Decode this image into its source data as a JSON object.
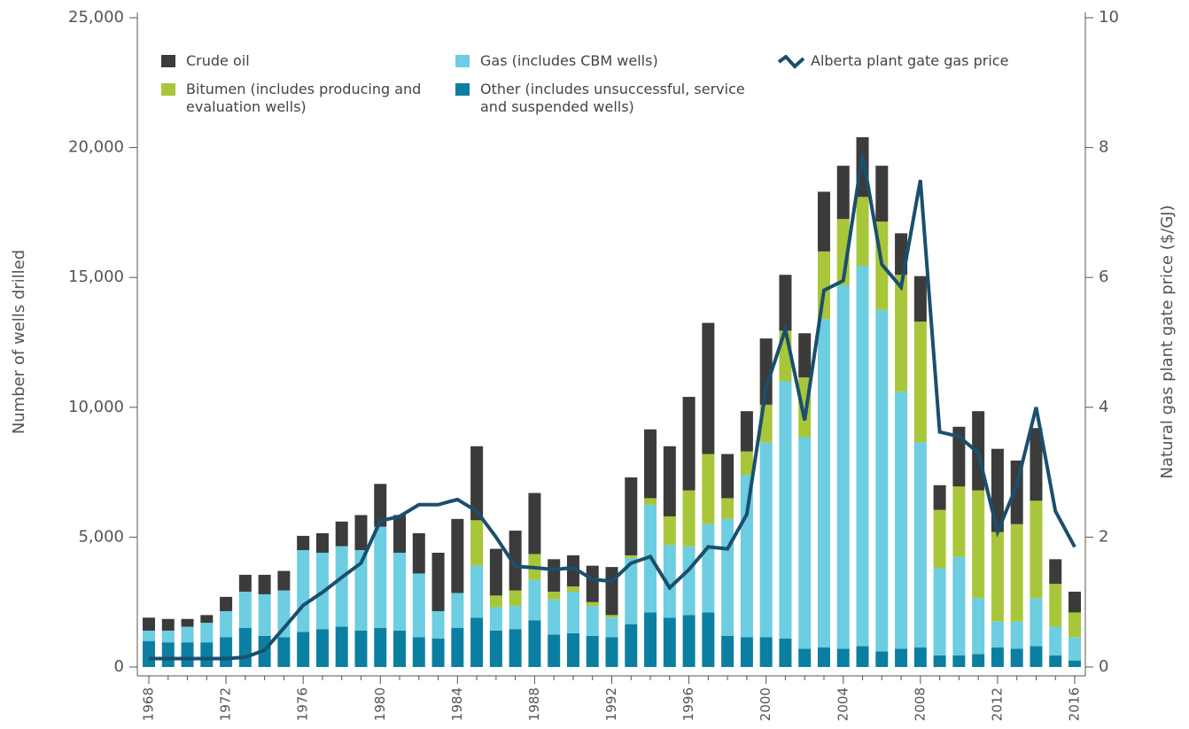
{
  "chart_data": {
    "type": "bar",
    "y_label": "Number of wells drilled",
    "y2_label": "Natural gas plant gate price ($/GJ)",
    "categories": [
      "1968",
      null,
      null,
      null,
      "1972",
      null,
      null,
      null,
      "1976",
      null,
      null,
      null,
      "1980",
      null,
      null,
      null,
      "1984",
      null,
      null,
      null,
      "1988",
      null,
      null,
      null,
      "1992",
      null,
      null,
      null,
      "1996",
      null,
      null,
      null,
      "2000",
      null,
      null,
      null,
      "2004",
      null,
      null,
      null,
      "2008",
      null,
      null,
      null,
      "2012",
      null,
      null,
      null,
      "2016"
    ],
    "stacked": true,
    "series": [
      {
        "name": "Crude oil",
        "color": "#3b3b3b",
        "values": [
          500,
          450,
          300,
          300,
          550,
          650,
          750,
          750,
          550,
          750,
          950,
          1350,
          1650,
          1450,
          1550,
          2250,
          2850,
          2850,
          1800,
          2300,
          2350,
          1250,
          1200,
          1400,
          1850,
          3000,
          2650,
          2700,
          3600,
          5050,
          1700,
          1550,
          2550,
          2150,
          1700,
          2300,
          2050,
          2300,
          2150,
          1600,
          1750,
          950,
          2300,
          3050,
          3200,
          2450,
          2800,
          950,
          800
        ]
      },
      {
        "name": "Bitumen (includes producing and evaluation wells)",
        "color": "#a8c63a",
        "values": [
          0,
          0,
          0,
          0,
          0,
          0,
          0,
          0,
          0,
          0,
          0,
          0,
          0,
          0,
          0,
          0,
          0,
          1750,
          450,
          600,
          1000,
          300,
          200,
          150,
          100,
          100,
          250,
          1100,
          2150,
          2700,
          800,
          900,
          1450,
          1950,
          2300,
          2600,
          2550,
          2650,
          3400,
          4500,
          4650,
          2250,
          2700,
          4150,
          3450,
          3750,
          3750,
          1650,
          950
        ]
      },
      {
        "name": "Gas (includes CBM wells)",
        "color": "#6dcde1",
        "values": [
          400,
          450,
          600,
          750,
          1000,
          1400,
          1600,
          1800,
          3150,
          2950,
          3100,
          3100,
          3900,
          3000,
          2450,
          1050,
          1350,
          2000,
          900,
          900,
          1550,
          1350,
          1600,
          1150,
          750,
          2550,
          4150,
          2800,
          2650,
          3400,
          4500,
          6250,
          7500,
          9900,
          8150,
          12650,
          14000,
          14650,
          13150,
          9900,
          7900,
          3350,
          3800,
          2150,
          1000,
          1050,
          1850,
          1100,
          900
        ]
      },
      {
        "name": "Other (includes unsuccessful, service and suspended wells)",
        "color": "#0b7fa1",
        "values": [
          1000,
          950,
          950,
          950,
          1150,
          1500,
          1200,
          1150,
          1350,
          1450,
          1550,
          1400,
          1500,
          1400,
          1150,
          1100,
          1500,
          1900,
          1400,
          1450,
          1800,
          1250,
          1300,
          1200,
          1150,
          1650,
          2100,
          1900,
          2000,
          2100,
          1200,
          1150,
          1150,
          1100,
          700,
          750,
          700,
          800,
          600,
          700,
          750,
          450,
          450,
          500,
          750,
          700,
          800,
          450,
          250
        ]
      },
      {
        "name": "Alberta plant gate gas price",
        "color": "#1a4f6e",
        "type": "line",
        "axis": "y2",
        "values": [
          0.13,
          0.13,
          0.13,
          0.13,
          0.13,
          0.15,
          0.26,
          0.6,
          0.95,
          1.15,
          1.38,
          1.6,
          2.25,
          2.32,
          2.5,
          2.5,
          2.58,
          2.4,
          2.0,
          1.55,
          1.53,
          1.5,
          1.53,
          1.35,
          1.32,
          1.6,
          1.7,
          1.22,
          1.5,
          1.85,
          1.82,
          2.35,
          4.3,
          5.2,
          3.8,
          5.8,
          5.95,
          7.9,
          6.2,
          5.85,
          7.5,
          3.62,
          3.55,
          3.3,
          2.08,
          2.8,
          4.0,
          2.4,
          1.85
        ]
      }
    ],
    "ylim": [
      0,
      25000
    ],
    "yticks": [
      0,
      {
        "value": 5000,
        "label": "5,000"
      },
      {
        "value": 10000,
        "label": "10,000"
      },
      {
        "value": 15000,
        "label": "15,000"
      },
      {
        "value": 20000,
        "label": "20,000"
      },
      {
        "value": 25000,
        "label": "25,000"
      }
    ],
    "y2lim": [
      0,
      10
    ],
    "y2ticks": [
      0,
      2,
      4,
      6,
      8,
      10
    ],
    "grid": false
  }
}
